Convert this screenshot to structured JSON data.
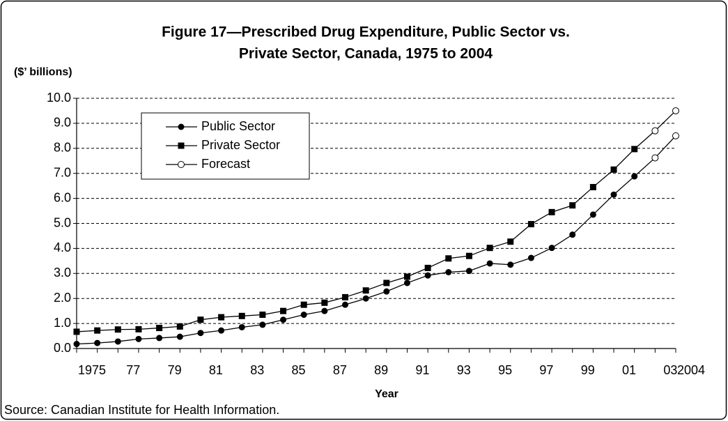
{
  "chart_data": {
    "type": "line",
    "title": [
      "Figure 17—Prescribed Drug Expenditure, Public Sector vs.",
      "Private Sector, Canada, 1975 to 2004"
    ],
    "ylabel": "($’ billions)",
    "xlabel": "Year",
    "source": "Source: Canadian Institute for Health Information.",
    "categories": [
      "1975",
      null,
      "77",
      null,
      "79",
      null,
      "81",
      null,
      "83",
      null,
      "85",
      null,
      "87",
      null,
      "89",
      null,
      "91",
      null,
      "93",
      null,
      "95",
      null,
      "97",
      null,
      "99",
      null,
      "01",
      null,
      "03",
      "2004"
    ],
    "series": [
      {
        "name": "Public Sector",
        "color": "#000000",
        "marker": "circle",
        "values": [
          0.18,
          0.22,
          0.28,
          0.38,
          0.42,
          0.47,
          0.62,
          0.72,
          0.85,
          0.95,
          1.15,
          1.35,
          1.5,
          1.75,
          2.0,
          2.28,
          2.62,
          2.92,
          3.05,
          3.1,
          3.4,
          3.35,
          3.62,
          4.02,
          4.55,
          5.35,
          6.15,
          6.88,
          null,
          null
        ]
      },
      {
        "name": "Private Sector",
        "color": "#000000",
        "marker": "square",
        "values": [
          0.67,
          0.72,
          0.76,
          0.77,
          0.82,
          0.88,
          1.15,
          1.25,
          1.3,
          1.35,
          1.5,
          1.75,
          1.83,
          2.05,
          2.32,
          2.62,
          2.87,
          3.22,
          3.6,
          3.7,
          4.02,
          4.27,
          4.97,
          5.45,
          5.72,
          6.45,
          7.15,
          7.97,
          null,
          null
        ]
      }
    ],
    "forecast": {
      "name": "Forecast",
      "color": "#000000",
      "marker": "open-circle",
      "values": [
        [
          null,
          null,
          null,
          null,
          null,
          null,
          null,
          null,
          null,
          null,
          null,
          null,
          null,
          null,
          null,
          null,
          null,
          null,
          null,
          null,
          null,
          null,
          null,
          null,
          null,
          null,
          null,
          null,
          7.62,
          8.5
        ],
        [
          null,
          null,
          null,
          null,
          null,
          null,
          null,
          null,
          null,
          null,
          null,
          null,
          null,
          null,
          null,
          null,
          null,
          null,
          null,
          null,
          null,
          null,
          null,
          null,
          null,
          null,
          null,
          null,
          8.7,
          9.5
        ]
      ]
    },
    "ylim": [
      0,
      10
    ],
    "yticks": [
      {
        "value": 0,
        "label": "0.0"
      },
      {
        "value": 1,
        "label": "1.0"
      },
      {
        "value": 2,
        "label": "2.0"
      },
      {
        "value": 3,
        "label": "3.0"
      },
      {
        "value": 4,
        "label": "4.0"
      },
      {
        "value": 5,
        "label": "5.0"
      },
      {
        "value": 6,
        "label": "6.0"
      },
      {
        "value": 7,
        "label": "7.0"
      },
      {
        "value": 8,
        "label": "8.0"
      },
      {
        "value": 9,
        "label": "9.0"
      },
      {
        "value": 10,
        "label": "10.0"
      }
    ],
    "grid": true,
    "legend": "upper-left"
  }
}
